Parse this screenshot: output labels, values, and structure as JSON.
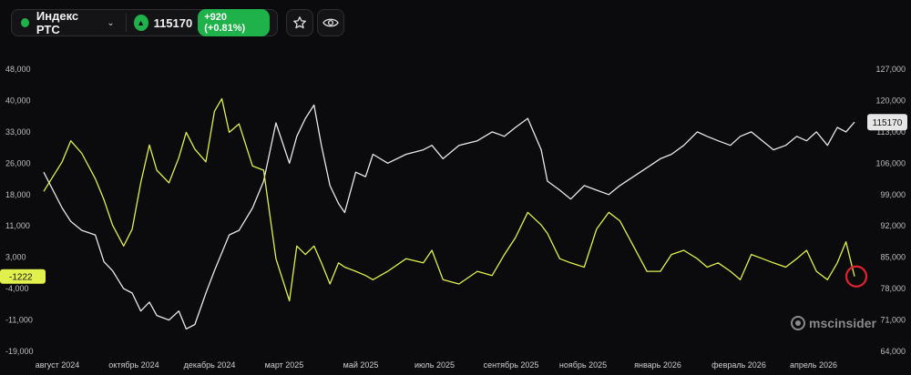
{
  "header": {
    "instrument_name": "Индекс РТС",
    "price": "115170",
    "change": "+920 (+0.81%)",
    "status_dot_color": "#1fb24a",
    "icons": {
      "dropdown": "chevron-down-icon",
      "trend": "arrow-up-icon",
      "favorite": "star-icon",
      "watch": "eye-icon"
    }
  },
  "watermark": "mscinsider",
  "chart_data": {
    "type": "line",
    "x": [
      "2024-07-22",
      "2024-08-06",
      "2024-08-13",
      "2024-08-22",
      "2024-09-02",
      "2024-09-09",
      "2024-09-16",
      "2024-09-25",
      "2024-10-02",
      "2024-10-09",
      "2024-10-16",
      "2024-10-22",
      "2024-11-01",
      "2024-11-09",
      "2024-11-15",
      "2024-11-22",
      "2024-12-01",
      "2024-12-08",
      "2024-12-14",
      "2024-12-20",
      "2024-12-28",
      "2025-01-08",
      "2025-01-17",
      "2025-01-27",
      "2025-02-07",
      "2025-02-13",
      "2025-02-20",
      "2025-02-27",
      "2025-03-05",
      "2025-03-12",
      "2025-03-19",
      "2025-03-24",
      "2025-04-02",
      "2025-04-10",
      "2025-04-16",
      "2025-04-28",
      "2025-05-13",
      "2025-05-27",
      "2025-06-03",
      "2025-06-12",
      "2025-06-25",
      "2025-07-10",
      "2025-07-22",
      "2025-08-01",
      "2025-08-10",
      "2025-08-20",
      "2025-08-31",
      "2025-09-05",
      "2025-09-15",
      "2025-09-24",
      "2025-10-05",
      "2025-10-15",
      "2025-10-25",
      "2025-11-03",
      "2025-11-14",
      "2025-11-25",
      "2025-12-06",
      "2025-12-15",
      "2025-12-25",
      "2026-01-05",
      "2026-01-13",
      "2026-01-22",
      "2026-02-01",
      "2026-02-09",
      "2026-02-18",
      "2026-02-27",
      "2026-03-08",
      "2026-03-18",
      "2026-03-27",
      "2026-04-04",
      "2026-04-12",
      "2026-04-21",
      "2026-04-29",
      "2026-05-06",
      "2026-05-13"
    ],
    "series": [
      {
        "axis": "right",
        "color": "#e8e8e8",
        "values": [
          104000,
          96000,
          93000,
          91000,
          90000,
          84000,
          82000,
          78000,
          77000,
          73000,
          75000,
          72000,
          71000,
          73000,
          69000,
          70000,
          77000,
          82000,
          86000,
          90000,
          91000,
          96000,
          102000,
          115000,
          106000,
          112000,
          116000,
          119000,
          110000,
          101000,
          97000,
          95000,
          104000,
          103000,
          108000,
          106000,
          108000,
          109000,
          110000,
          107000,
          110000,
          111000,
          113000,
          112000,
          114000,
          116000,
          109000,
          102000,
          100000,
          98000,
          101000,
          100000,
          99000,
          101000,
          103000,
          105000,
          107000,
          108000,
          110000,
          113000,
          112000,
          111000,
          110000,
          112000,
          113000,
          111000,
          109000,
          110000,
          112000,
          111000,
          113000,
          110000,
          114000,
          113000,
          115170
        ]
      },
      {
        "axis": "left",
        "name": "-1222",
        "color": "#e1f04c",
        "values": [
          19000,
          26000,
          31000,
          28000,
          22000,
          17000,
          11000,
          6000,
          10000,
          21000,
          30000,
          24000,
          21000,
          27000,
          33000,
          29000,
          26000,
          38000,
          41000,
          33000,
          35000,
          25000,
          24000,
          3000,
          -7000,
          6000,
          4000,
          6000,
          2000,
          -3000,
          2000,
          1000,
          0,
          -1000,
          -2000,
          0,
          3000,
          2000,
          5000,
          -2000,
          -3000,
          0,
          -1000,
          4000,
          8000,
          14000,
          11000,
          9000,
          3000,
          2000,
          1000,
          10000,
          14000,
          12000,
          6000,
          0,
          0,
          4000,
          5000,
          3000,
          1000,
          2000,
          0,
          -2000,
          4000,
          3000,
          2000,
          1000,
          3000,
          5000,
          0,
          -2000,
          2000,
          7000,
          -1222
        ]
      }
    ],
    "y_left": {
      "ticks": [
        "48,000",
        "40,000",
        "33,000",
        "26,000",
        "18,000",
        "11,000",
        "3,000",
        "-4,000",
        "-11,000",
        "-19,000"
      ],
      "range": [
        -19000,
        48000
      ]
    },
    "y_right": {
      "ticks": [
        "127,000",
        "120,000",
        "113,000",
        "106,000",
        "99,000",
        "92,000",
        "85,000",
        "78,000",
        "71,000",
        "64,000"
      ],
      "range": [
        64000,
        127000
      ]
    },
    "x_labels": [
      "август 2024",
      "октябрь 2024",
      "декабрь 2024",
      "март 2025",
      "май 2025",
      "июль 2025",
      "сентябрь 2025",
      "ноябрь 2025",
      "январь 2026",
      "февраль 2026",
      "апрель 2026"
    ],
    "last_value_label_right": "115170",
    "last_value_label_left": "-1222",
    "grid": false,
    "background": "#0b0b0e"
  }
}
